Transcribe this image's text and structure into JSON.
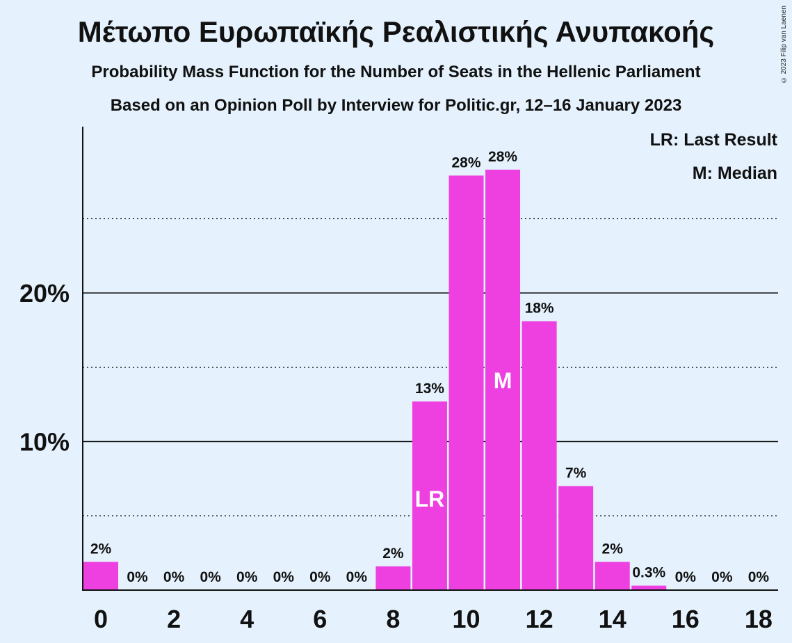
{
  "title": "Μέτωπο Ευρωπαϊκής Ρεαλιστικής Ανυπακοής",
  "subtitle": "Probability Mass Function for the Number of Seats in the Hellenic Parliament",
  "subtitle2": "Based on an Opinion Poll by Interview for Politic.gr, 12–16 January 2023",
  "copyright": "© 2023 Filip van Laenen",
  "legend": {
    "last_result": "LR: Last Result",
    "median": "M: Median"
  },
  "colors": {
    "bar": "#ee3fe0",
    "background": "#e5f2fd"
  },
  "chart_data": {
    "type": "bar",
    "x": [
      0,
      1,
      2,
      3,
      4,
      5,
      6,
      7,
      8,
      9,
      10,
      11,
      12,
      13,
      14,
      15,
      16,
      17,
      18
    ],
    "values": [
      1.9,
      0,
      0,
      0,
      0,
      0,
      0,
      0,
      1.6,
      12.7,
      27.9,
      28.3,
      18.1,
      7.0,
      1.9,
      0.3,
      0,
      0,
      0
    ],
    "data_labels": [
      "2%",
      "0%",
      "0%",
      "0%",
      "0%",
      "0%",
      "0%",
      "0%",
      "2%",
      "13%",
      "28%",
      "28%",
      "18%",
      "7%",
      "2%",
      "0.3%",
      "0%",
      "0%",
      "0%"
    ],
    "x_tick_labels": [
      "0",
      "2",
      "4",
      "6",
      "8",
      "10",
      "12",
      "14",
      "16",
      "18"
    ],
    "y_tick_labels": [
      "10%",
      "20%"
    ],
    "ylim": [
      0,
      31
    ],
    "gridlines_solid": [
      10,
      20
    ],
    "gridlines_dotted": [
      5,
      15,
      25
    ],
    "last_result_seat": 9,
    "last_result_marker": "LR",
    "median_seat": 11,
    "median_marker": "M"
  }
}
